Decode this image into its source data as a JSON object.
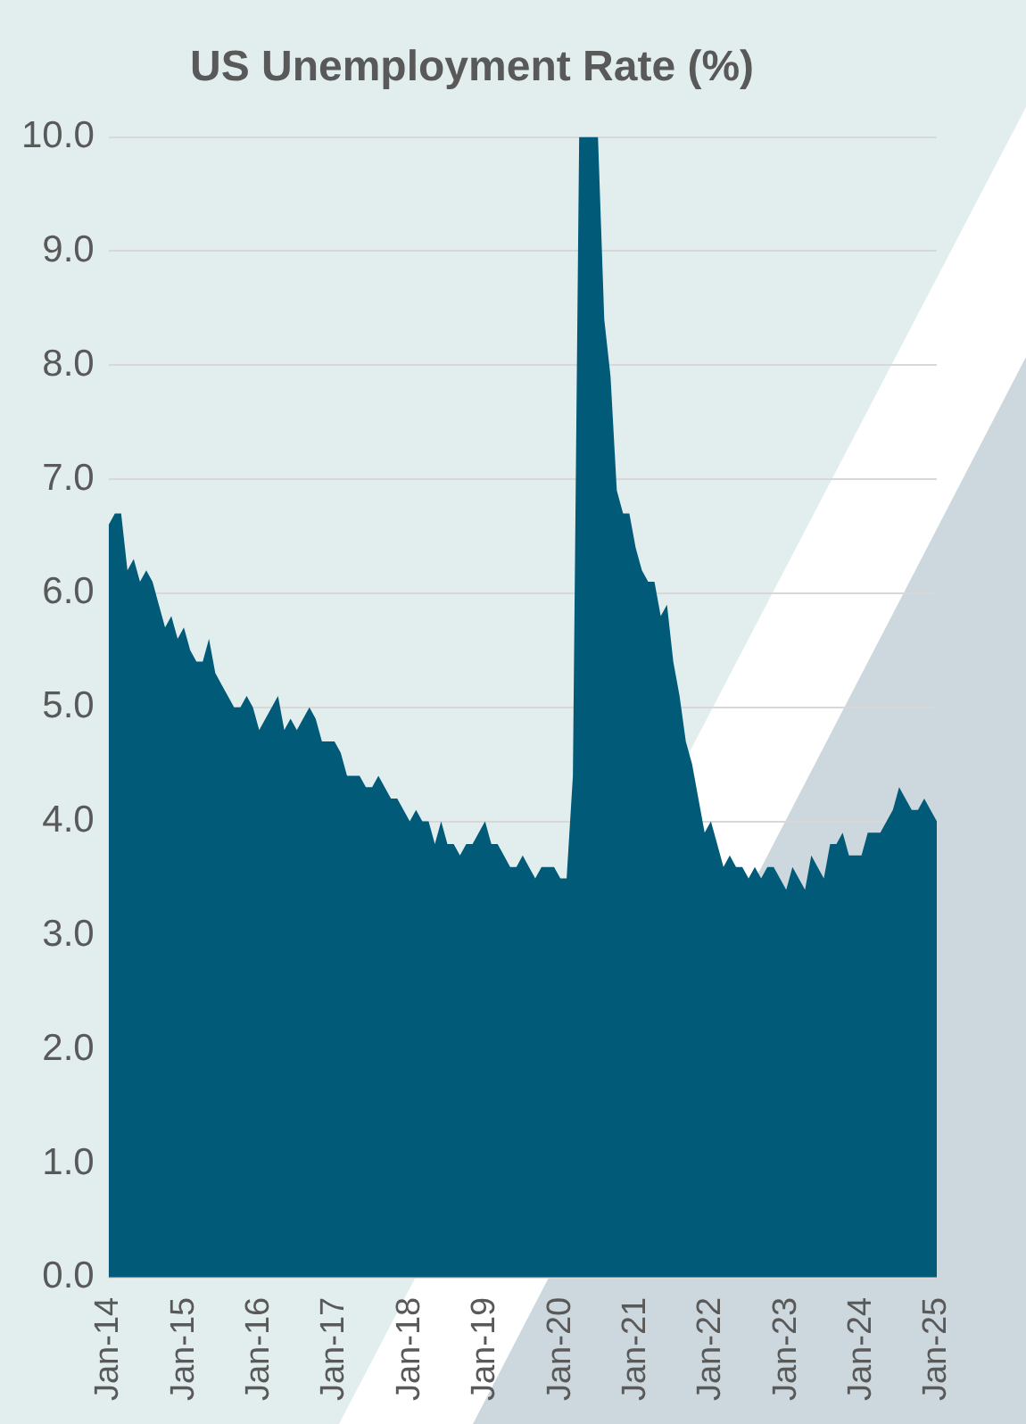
{
  "chart_data": {
    "type": "area",
    "title": "US Unemployment Rate (%)",
    "x": [
      "2014-01",
      "2014-02",
      "2014-03",
      "2014-04",
      "2014-05",
      "2014-06",
      "2014-07",
      "2014-08",
      "2014-09",
      "2014-10",
      "2014-11",
      "2014-12",
      "2015-01",
      "2015-02",
      "2015-03",
      "2015-04",
      "2015-05",
      "2015-06",
      "2015-07",
      "2015-08",
      "2015-09",
      "2015-10",
      "2015-11",
      "2015-12",
      "2016-01",
      "2016-02",
      "2016-03",
      "2016-04",
      "2016-05",
      "2016-06",
      "2016-07",
      "2016-08",
      "2016-09",
      "2016-10",
      "2016-11",
      "2016-12",
      "2017-01",
      "2017-02",
      "2017-03",
      "2017-04",
      "2017-05",
      "2017-06",
      "2017-07",
      "2017-08",
      "2017-09",
      "2017-10",
      "2017-11",
      "2017-12",
      "2018-01",
      "2018-02",
      "2018-03",
      "2018-04",
      "2018-05",
      "2018-06",
      "2018-07",
      "2018-08",
      "2018-09",
      "2018-10",
      "2018-11",
      "2018-12",
      "2019-01",
      "2019-02",
      "2019-03",
      "2019-04",
      "2019-05",
      "2019-06",
      "2019-07",
      "2019-08",
      "2019-09",
      "2019-10",
      "2019-11",
      "2019-12",
      "2020-01",
      "2020-02",
      "2020-03",
      "2020-04",
      "2020-05",
      "2020-06",
      "2020-07",
      "2020-08",
      "2020-09",
      "2020-10",
      "2020-11",
      "2020-12",
      "2021-01",
      "2021-02",
      "2021-03",
      "2021-04",
      "2021-05",
      "2021-06",
      "2021-07",
      "2021-08",
      "2021-09",
      "2021-10",
      "2021-11",
      "2021-12",
      "2022-01",
      "2022-02",
      "2022-03",
      "2022-04",
      "2022-05",
      "2022-06",
      "2022-07",
      "2022-08",
      "2022-09",
      "2022-10",
      "2022-11",
      "2022-12",
      "2023-01",
      "2023-02",
      "2023-03",
      "2023-04",
      "2023-05",
      "2023-06",
      "2023-07",
      "2023-08",
      "2023-09",
      "2023-10",
      "2023-11",
      "2023-12",
      "2024-01",
      "2024-02",
      "2024-03",
      "2024-04",
      "2024-05",
      "2024-06",
      "2024-07",
      "2024-08",
      "2024-09",
      "2024-10",
      "2024-11",
      "2024-12",
      "2025-01"
    ],
    "series": [
      {
        "color": "#005a78",
        "values": [
          6.6,
          6.7,
          6.7,
          6.2,
          6.3,
          6.1,
          6.2,
          6.1,
          5.9,
          5.7,
          5.8,
          5.6,
          5.7,
          5.5,
          5.4,
          5.4,
          5.6,
          5.3,
          5.2,
          5.1,
          5.0,
          5.0,
          5.1,
          5.0,
          4.8,
          4.9,
          5.0,
          5.1,
          4.8,
          4.9,
          4.8,
          4.9,
          5.0,
          4.9,
          4.7,
          4.7,
          4.7,
          4.6,
          4.4,
          4.4,
          4.4,
          4.3,
          4.3,
          4.4,
          4.3,
          4.2,
          4.2,
          4.1,
          4.0,
          4.1,
          4.0,
          4.0,
          3.8,
          4.0,
          3.8,
          3.8,
          3.7,
          3.8,
          3.8,
          3.9,
          4.0,
          3.8,
          3.8,
          3.7,
          3.6,
          3.6,
          3.7,
          3.6,
          3.5,
          3.6,
          3.6,
          3.6,
          3.5,
          3.5,
          4.4,
          10.0,
          10.0,
          10.0,
          10.0,
          8.4,
          7.9,
          6.9,
          6.7,
          6.7,
          6.4,
          6.2,
          6.1,
          6.1,
          5.8,
          5.9,
          5.4,
          5.1,
          4.7,
          4.5,
          4.2,
          3.9,
          4.0,
          3.8,
          3.6,
          3.7,
          3.6,
          3.6,
          3.5,
          3.6,
          3.5,
          3.6,
          3.6,
          3.5,
          3.4,
          3.6,
          3.5,
          3.4,
          3.7,
          3.6,
          3.5,
          3.8,
          3.8,
          3.9,
          3.7,
          3.7,
          3.7,
          3.9,
          3.9,
          3.9,
          4.0,
          4.1,
          4.3,
          4.2,
          4.1,
          4.1,
          4.2,
          4.1,
          4.0
        ]
      }
    ],
    "xlim": [
      "2014-01",
      "2025-01"
    ],
    "xticks": [
      {
        "value": "2014-01",
        "label": "Jan-14"
      },
      {
        "value": "2015-01",
        "label": "Jan-15"
      },
      {
        "value": "2016-01",
        "label": "Jan-16"
      },
      {
        "value": "2017-01",
        "label": "Jan-17"
      },
      {
        "value": "2018-01",
        "label": "Jan-18"
      },
      {
        "value": "2019-01",
        "label": "Jan-19"
      },
      {
        "value": "2020-01",
        "label": "Jan-20"
      },
      {
        "value": "2021-01",
        "label": "Jan-21"
      },
      {
        "value": "2022-01",
        "label": "Jan-22"
      },
      {
        "value": "2023-01",
        "label": "Jan-23"
      },
      {
        "value": "2024-01",
        "label": "Jan-24"
      },
      {
        "value": "2025-01",
        "label": "Jan-25"
      }
    ],
    "ylim": [
      0,
      10
    ],
    "yticks": [
      {
        "value": 0,
        "label": "0.0"
      },
      {
        "value": 1,
        "label": "1.0"
      },
      {
        "value": 2,
        "label": "2.0"
      },
      {
        "value": 3,
        "label": "3.0"
      },
      {
        "value": 4,
        "label": "4.0"
      },
      {
        "value": 5,
        "label": "5.0"
      },
      {
        "value": 6,
        "label": "6.0"
      },
      {
        "value": 7,
        "label": "7.0"
      },
      {
        "value": 8,
        "label": "8.0"
      },
      {
        "value": 9,
        "label": "9.0"
      },
      {
        "value": 10,
        "label": "10.0"
      }
    ],
    "grid": "y"
  }
}
